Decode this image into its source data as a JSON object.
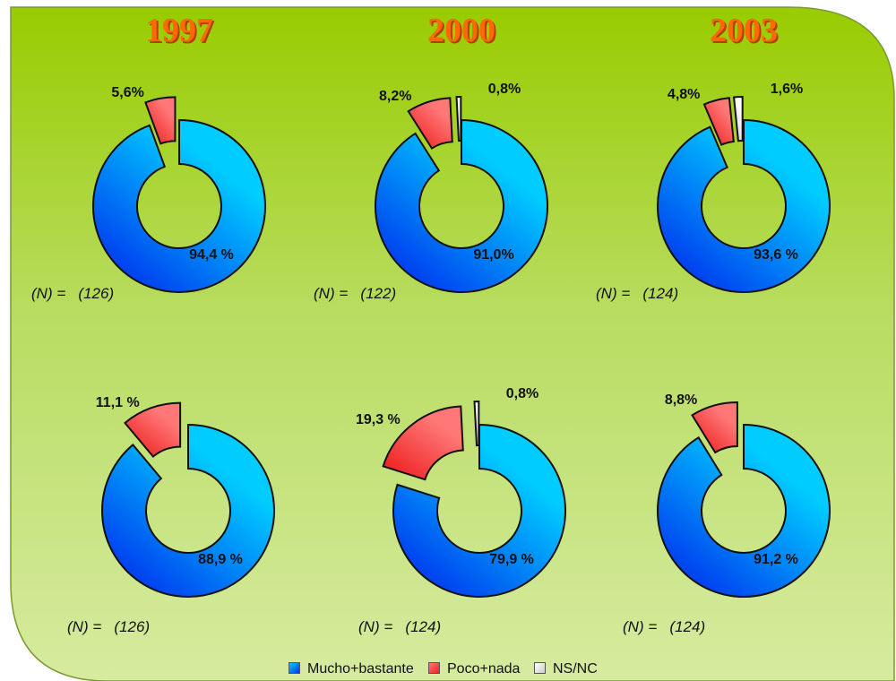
{
  "legend": [
    {
      "name": "Mucho+bastante",
      "color": "#00ccff"
    },
    {
      "name": "Poco+nada",
      "color": "#ff7777"
    },
    {
      "name": "NS/NC",
      "color": "#ffffff"
    }
  ],
  "chart_data": [
    {
      "type": "donut",
      "title": "1997",
      "values": [
        94.4,
        5.6
      ],
      "value_labels": [
        "94,4 %",
        "5,6%"
      ],
      "n_label": "(N) =   (126)"
    },
    {
      "type": "donut",
      "title": "2000",
      "values": [
        91.0,
        8.2,
        0.8
      ],
      "value_labels": [
        "91,0%",
        "8,2%",
        "0,8%"
      ],
      "n_label": "(N) =   (122)"
    },
    {
      "type": "donut",
      "title": "2003",
      "values": [
        93.6,
        4.8,
        1.6
      ],
      "value_labels": [
        "93,6 %",
        "4,8%",
        "1,6%"
      ],
      "n_label": "(N) =   (124)"
    },
    {
      "type": "donut",
      "values": [
        88.9,
        11.1
      ],
      "value_labels": [
        "88,9 %",
        "11,1 %"
      ],
      "n_label": "(N) =   (126)"
    },
    {
      "type": "donut",
      "values": [
        79.9,
        19.3,
        0.8
      ],
      "value_labels": [
        "79,9 %",
        "19,3 %",
        "0,8%"
      ],
      "n_label": "(N) =   (124)"
    },
    {
      "type": "donut",
      "values": [
        91.2,
        8.8
      ],
      "value_labels": [
        "91,2 %",
        "8,8%"
      ],
      "n_label": "(N) =   (124)"
    }
  ]
}
